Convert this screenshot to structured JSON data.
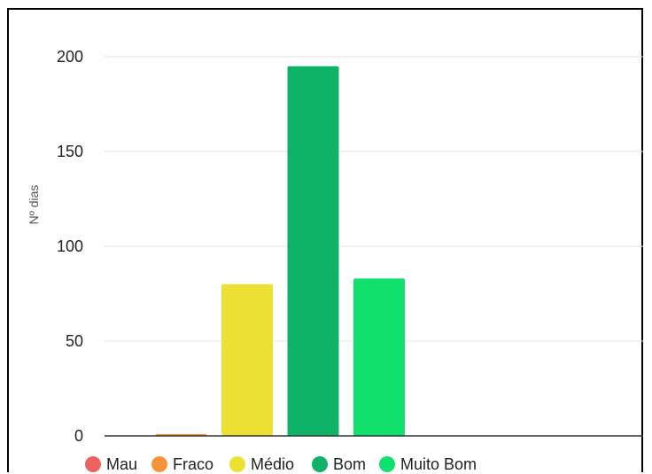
{
  "chart_data": {
    "type": "bar",
    "ylabel": "Nº dias",
    "xlabel": "",
    "title": "",
    "categories": [
      "Mau",
      "Fraco",
      "Médio",
      "Bom",
      "Muito Bom"
    ],
    "values": [
      0,
      1,
      80,
      195,
      83
    ],
    "colors": [
      "#f06262",
      "#f5933a",
      "#ece035",
      "#0fb368",
      "#0fe06e"
    ],
    "ylim": [
      0,
      200
    ],
    "yticks": [
      "0",
      "50",
      "100",
      "150",
      "200"
    ],
    "grid": true,
    "legend_position": "bottom-left"
  }
}
